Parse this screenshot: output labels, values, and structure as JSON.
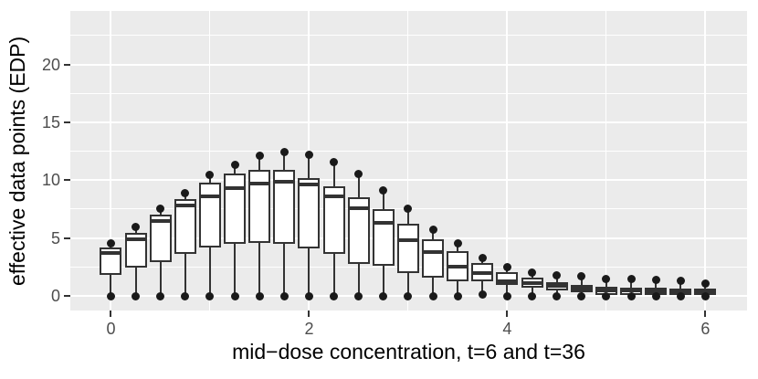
{
  "chart_data": {
    "type": "boxplot",
    "title": "",
    "xlabel": "mid−dose concentration, t=6 and t=36",
    "ylabel": "effective data points (EDP)",
    "x_ticks": [
      0,
      2,
      4,
      6
    ],
    "x_tick_labels": [
      "0",
      "2",
      "4",
      "6"
    ],
    "y_ticks": [
      0,
      5,
      10,
      15,
      20
    ],
    "y_tick_labels": [
      "0",
      "5",
      "10",
      "15",
      "20"
    ],
    "x_minor": [
      1,
      3,
      5
    ],
    "y_minor": [
      2.5,
      7.5,
      12.5,
      17.5,
      22.5
    ],
    "xlim": [
      -0.41,
      6.42
    ],
    "ylim": [
      -1.26,
      24.62
    ],
    "grid": "white major/minor gridlines on gray panel",
    "legend_position": "none",
    "box_spacing": 0.25,
    "boxes": [
      {
        "x": 0.0,
        "q1": 1.85,
        "med": 3.7,
        "q3": 4.2,
        "hi": 4.55,
        "lo": 0
      },
      {
        "x": 0.25,
        "q1": 2.45,
        "med": 4.9,
        "q3": 5.45,
        "hi": 5.95,
        "lo": 0
      },
      {
        "x": 0.5,
        "q1": 2.9,
        "med": 6.5,
        "q3": 7.05,
        "hi": 7.55,
        "lo": 0
      },
      {
        "x": 0.75,
        "q1": 3.6,
        "med": 7.8,
        "q3": 8.35,
        "hi": 8.9,
        "lo": 0
      },
      {
        "x": 1.0,
        "q1": 4.2,
        "med": 8.6,
        "q3": 9.8,
        "hi": 10.45,
        "lo": 0
      },
      {
        "x": 1.25,
        "q1": 4.5,
        "med": 9.35,
        "q3": 10.6,
        "hi": 11.3,
        "lo": 0
      },
      {
        "x": 1.5,
        "q1": 4.6,
        "med": 9.7,
        "q3": 10.9,
        "hi": 12.1,
        "lo": 0
      },
      {
        "x": 1.75,
        "q1": 4.5,
        "med": 9.9,
        "q3": 10.9,
        "hi": 12.4,
        "lo": 0
      },
      {
        "x": 2.0,
        "q1": 4.1,
        "med": 9.6,
        "q3": 10.2,
        "hi": 12.2,
        "lo": 0
      },
      {
        "x": 2.25,
        "q1": 3.6,
        "med": 8.6,
        "q3": 9.5,
        "hi": 11.55,
        "lo": 0
      },
      {
        "x": 2.5,
        "q1": 2.8,
        "med": 7.6,
        "q3": 8.5,
        "hi": 10.5,
        "lo": 0
      },
      {
        "x": 2.75,
        "q1": 2.6,
        "med": 6.3,
        "q3": 7.5,
        "hi": 9.1,
        "lo": 0
      },
      {
        "x": 3.0,
        "q1": 2.0,
        "med": 4.8,
        "q3": 6.2,
        "hi": 7.5,
        "lo": 0
      },
      {
        "x": 3.25,
        "q1": 1.6,
        "med": 3.8,
        "q3": 4.9,
        "hi": 5.7,
        "lo": 0
      },
      {
        "x": 3.5,
        "q1": 1.3,
        "med": 2.55,
        "q3": 3.9,
        "hi": 4.55,
        "lo": 0
      },
      {
        "x": 3.75,
        "q1": 1.25,
        "med": 1.95,
        "q3": 2.85,
        "hi": 3.3,
        "lo": 0.1
      },
      {
        "x": 4.0,
        "q1": 0.95,
        "med": 1.3,
        "q3": 2.05,
        "hi": 2.45,
        "lo": 0
      },
      {
        "x": 4.25,
        "q1": 0.7,
        "med": 1.1,
        "q3": 1.55,
        "hi": 2.05,
        "lo": 0
      },
      {
        "x": 4.5,
        "q1": 0.5,
        "med": 0.85,
        "q3": 1.2,
        "hi": 1.8,
        "lo": 0
      },
      {
        "x": 4.75,
        "q1": 0.3,
        "med": 0.6,
        "q3": 0.95,
        "hi": 1.7,
        "lo": 0
      },
      {
        "x": 5.0,
        "q1": 0.1,
        "med": 0.45,
        "q3": 0.8,
        "hi": 1.5,
        "lo": 0
      },
      {
        "x": 5.25,
        "q1": 0.1,
        "med": 0.45,
        "q3": 0.75,
        "hi": 1.45,
        "lo": 0
      },
      {
        "x": 5.5,
        "q1": 0.1,
        "med": 0.4,
        "q3": 0.7,
        "hi": 1.4,
        "lo": 0
      },
      {
        "x": 5.75,
        "q1": 0.1,
        "med": 0.4,
        "q3": 0.65,
        "hi": 1.3,
        "lo": 0
      },
      {
        "x": 6.0,
        "q1": 0.1,
        "med": 0.35,
        "q3": 0.6,
        "hi": 1.05,
        "lo": 0
      }
    ],
    "colors": {
      "panel_background": "#EBEBEB",
      "gridline": "#FFFFFF",
      "box_border": "#333333",
      "box_fill": "#FFFFFF",
      "median": "#333333",
      "point": "#1A1A1A",
      "tick_text": "#4D4D4D",
      "axis_title_text": "#000000",
      "tick_mark": "#333333"
    }
  }
}
